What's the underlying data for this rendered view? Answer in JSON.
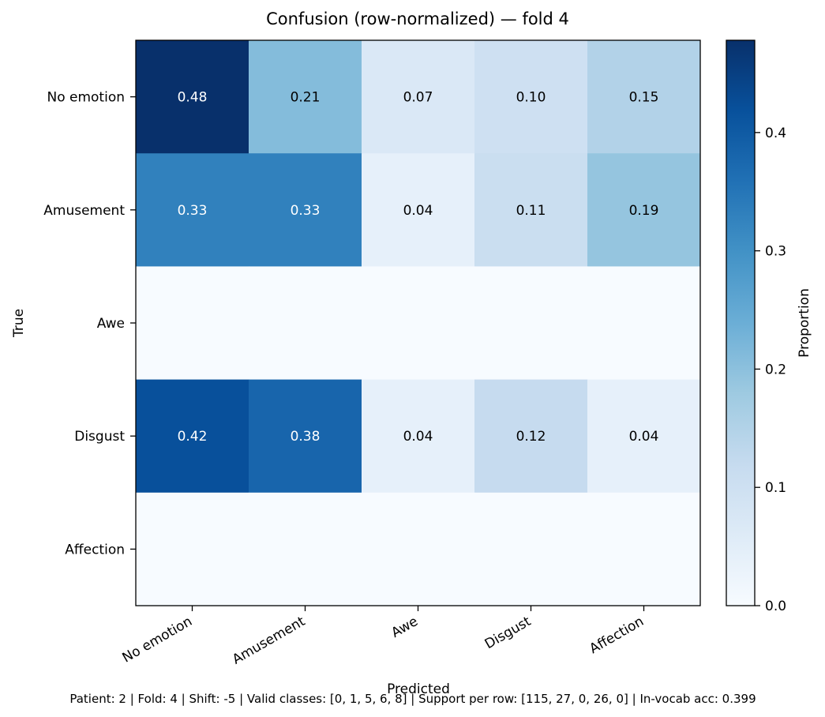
{
  "chart_data": {
    "type": "heatmap",
    "title": "Confusion (row-normalized) — fold 4",
    "xlabel": "Predicted",
    "ylabel": "True",
    "x_categories": [
      "No emotion",
      "Amusement",
      "Awe",
      "Disgust",
      "Affection"
    ],
    "y_categories": [
      "No emotion",
      "Amusement",
      "Awe",
      "Disgust",
      "Affection"
    ],
    "values": [
      [
        0.48,
        0.21,
        0.07,
        0.1,
        0.15
      ],
      [
        0.33,
        0.33,
        0.04,
        0.11,
        0.19
      ],
      [
        0.0,
        0.0,
        0.0,
        0.0,
        0.0
      ],
      [
        0.42,
        0.38,
        0.04,
        0.12,
        0.04
      ],
      [
        0.0,
        0.0,
        0.0,
        0.0,
        0.0
      ]
    ],
    "cell_labels": [
      [
        "0.48",
        "0.21",
        "0.07",
        "0.10",
        "0.15"
      ],
      [
        "0.33",
        "0.33",
        "0.04",
        "0.11",
        "0.19"
      ],
      [
        "",
        "",
        "",
        "",
        ""
      ],
      [
        "0.42",
        "0.38",
        "0.04",
        "0.12",
        "0.04"
      ],
      [
        "",
        "",
        "",
        "",
        ""
      ]
    ],
    "colormap": "Blues",
    "colorbar": {
      "label": "Proportion",
      "range": [
        0.0,
        0.478
      ],
      "ticks": [
        0.0,
        0.1,
        0.2,
        0.3,
        0.4
      ],
      "tick_labels": [
        "0.0",
        "0.1",
        "0.2",
        "0.3",
        "0.4"
      ]
    },
    "footer": "Patient: 2 | Fold: 4 | Shift: -5 | Valid classes: [0, 1, 5, 6, 8] | Support per row: [115, 27, 0, 26, 0] | In-vocab acc: 0.399"
  }
}
